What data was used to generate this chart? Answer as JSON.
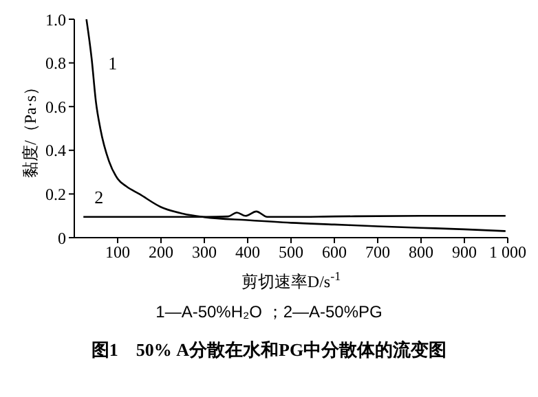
{
  "chart_data": {
    "type": "line",
    "title": "图1　50% A分散在水和PG中分散体的流变图",
    "xlabel": "剪切速率D/s$^{-1}$",
    "ylabel": "黏度/（Pa·s）",
    "annotations": [
      "1—A-50%H₂O ；2—A-50%PG"
    ],
    "xlim": [
      0,
      1000
    ],
    "xticks": [
      100,
      200,
      300,
      400,
      500,
      600,
      700,
      800,
      900,
      {
        "value": 1000,
        "label": "1 000"
      }
    ],
    "ylim": [
      0,
      1
    ],
    "yticks": [
      0,
      0.2,
      0.4,
      0.6,
      0.8,
      {
        "value": 1,
        "label": "1.0"
      }
    ],
    "grid": false,
    "legend": false,
    "marker": "none",
    "line_style": "solid",
    "series": [
      {
        "name": "1",
        "color": "#000000",
        "x": [
          28,
          40,
          50,
          60,
          80,
          100,
          120,
          150,
          200,
          250,
          300,
          400,
          500,
          600,
          700,
          800,
          900,
          995
        ],
        "values": [
          1.0,
          0.82,
          0.62,
          0.5,
          0.35,
          0.27,
          0.235,
          0.2,
          0.14,
          0.11,
          0.094,
          0.08,
          0.068,
          0.06,
          0.052,
          0.045,
          0.038,
          0.03
        ]
      },
      {
        "name": "2",
        "color": "#000000",
        "x": [
          21,
          100,
          200,
          300,
          355,
          375,
          395,
          420,
          445,
          500,
          600,
          800,
          995
        ],
        "values": [
          0.095,
          0.095,
          0.095,
          0.095,
          0.097,
          0.115,
          0.1,
          0.12,
          0.095,
          0.095,
          0.097,
          0.1,
          0.1
        ]
      }
    ]
  }
}
